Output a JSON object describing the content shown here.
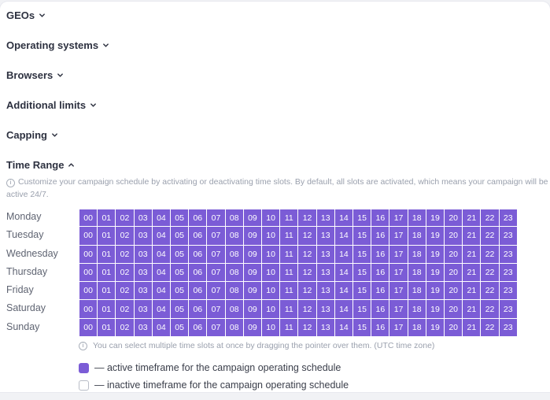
{
  "sections": [
    {
      "label": "GEOs",
      "expanded": false
    },
    {
      "label": "Operating systems",
      "expanded": false
    },
    {
      "label": "Browsers",
      "expanded": false
    },
    {
      "label": "Additional limits",
      "expanded": false
    },
    {
      "label": "Capping",
      "expanded": false
    },
    {
      "label": "Time Range",
      "expanded": true
    }
  ],
  "time_range": {
    "info_icon": "info-circle-icon",
    "description": "Customize your campaign schedule by activating or deactivating time slots. By default, all slots are activated, which means your campaign will be active 24/7.",
    "days": [
      "Monday",
      "Tuesday",
      "Wednesday",
      "Thursday",
      "Friday",
      "Saturday",
      "Sunday"
    ],
    "hours": [
      "00",
      "01",
      "02",
      "03",
      "04",
      "05",
      "06",
      "07",
      "08",
      "09",
      "10",
      "11",
      "12",
      "13",
      "14",
      "15",
      "16",
      "17",
      "18",
      "19",
      "20",
      "21",
      "22",
      "23"
    ],
    "all_slots_active": true,
    "hint": "You can select multiple time slots at once by dragging the pointer over them. (UTC time zone)",
    "legend": {
      "active": "— active timeframe for the campaign operating schedule",
      "inactive": "— inactive timeframe for the campaign operating schedule"
    }
  },
  "colors": {
    "active_slot": "#7b5cd6",
    "inactive_slot": "#ffffff",
    "heading": "#2d3140",
    "muted": "#9aa0ad"
  }
}
